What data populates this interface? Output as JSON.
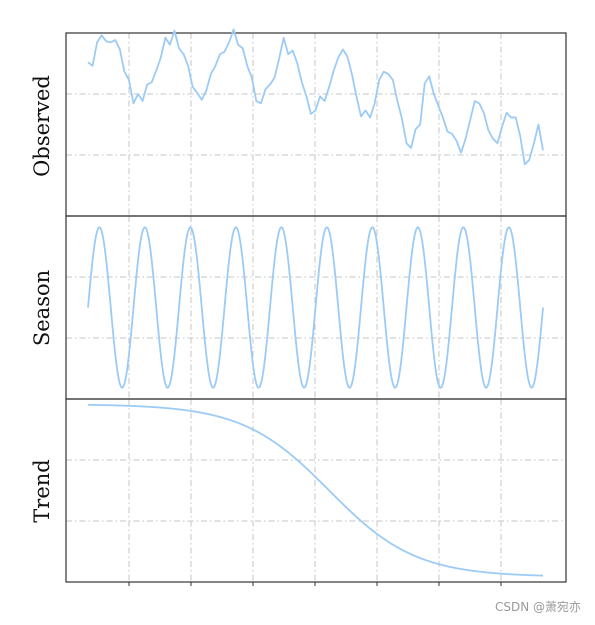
{
  "chart_data": [
    {
      "type": "line",
      "ylabel": "Observed",
      "xlim": [
        0,
        100
      ],
      "ylim": [
        -0.18,
        1.38
      ],
      "grid": true,
      "color": "#9ccbf5",
      "x": [
        0,
        1,
        2,
        3,
        4,
        5,
        6,
        7,
        8,
        9,
        10,
        11,
        12,
        13,
        14,
        15,
        16,
        17,
        18,
        19,
        20,
        21,
        22,
        23,
        24,
        25,
        26,
        27,
        28,
        29,
        30,
        31,
        32,
        33,
        34,
        35,
        36,
        37,
        38,
        39,
        40,
        41,
        42,
        43,
        44,
        45,
        46,
        47,
        48,
        49,
        50,
        51,
        52,
        53,
        54,
        55,
        56,
        57,
        58,
        59,
        60,
        61,
        62,
        63,
        64,
        65,
        66,
        67,
        68,
        69,
        70,
        71,
        72,
        73,
        74,
        75,
        76,
        77,
        78,
        79,
        80,
        81,
        82,
        83,
        84,
        85,
        86,
        87,
        88,
        89,
        90,
        91,
        92,
        93,
        94,
        95,
        96,
        97,
        98,
        99,
        100
      ],
      "y": [
        1.13,
        1.1,
        1.3,
        1.36,
        1.31,
        1.3,
        1.32,
        1.24,
        1.05,
        0.98,
        0.78,
        0.86,
        0.8,
        0.94,
        0.96,
        1.06,
        1.17,
        1.34,
        1.28,
        1.4,
        1.25,
        1.2,
        1.1,
        0.92,
        0.87,
        0.81,
        0.89,
        1.03,
        1.1,
        1.2,
        1.22,
        1.3,
        1.41,
        1.28,
        1.25,
        1.1,
        1.0,
        0.8,
        0.78,
        0.9,
        0.94,
        1.0,
        1.16,
        1.34,
        1.2,
        1.23,
        1.12,
        0.96,
        0.84,
        0.69,
        0.72,
        0.84,
        0.8,
        0.92,
        1.06,
        1.17,
        1.24,
        1.18,
        1.03,
        0.84,
        0.67,
        0.72,
        0.66,
        0.78,
        0.98,
        1.05,
        1.03,
        0.98,
        0.8,
        0.65,
        0.44,
        0.4,
        0.56,
        0.6,
        0.95,
        1.01,
        0.86,
        0.76,
        0.66,
        0.54,
        0.52,
        0.46,
        0.36,
        0.48,
        0.64,
        0.8,
        0.78,
        0.7,
        0.55,
        0.48,
        0.44,
        0.58,
        0.7,
        0.66,
        0.66,
        0.5,
        0.26,
        0.3,
        0.44,
        0.6,
        0.38
      ]
    },
    {
      "type": "line",
      "ylabel": "Season",
      "xlim": [
        0,
        100
      ],
      "ylim": [
        -1.14,
        1.14
      ],
      "grid": true,
      "color": "#9ccbf5",
      "function": "sin",
      "period": 10,
      "amplitude": 1,
      "phase": 0,
      "x_range": [
        0,
        100
      ]
    },
    {
      "type": "line",
      "ylabel": "Trend",
      "xlim": [
        0,
        100
      ],
      "ylim": [
        -0.03,
        1.03
      ],
      "grid": true,
      "color": "#9ccbf5",
      "function": "1-logistic",
      "midpoint": 53,
      "scale": 9.5,
      "x_range": [
        0,
        100
      ]
    }
  ],
  "watermark": "CSDN @萧宛亦"
}
